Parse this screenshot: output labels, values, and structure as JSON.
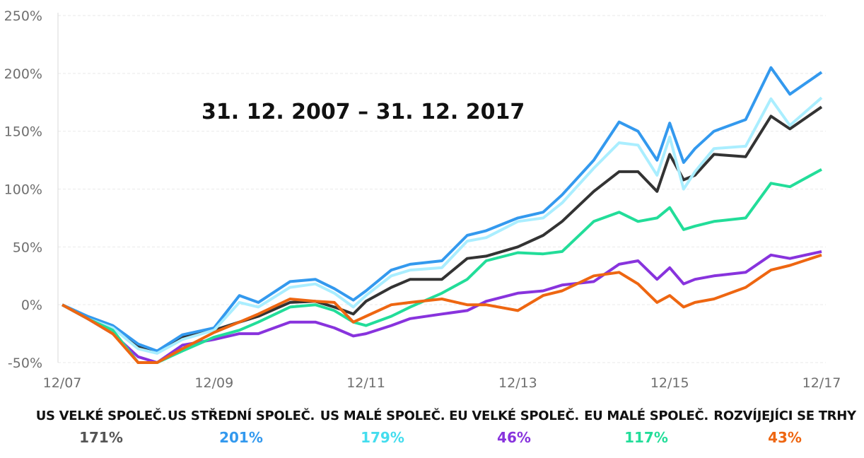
{
  "chart_data": {
    "type": "line",
    "period_label": "31. 12. 2007 – 31. 12. 2017",
    "ylim": [
      -50,
      250
    ],
    "y_ticks": [
      250,
      200,
      150,
      100,
      50,
      0,
      -50
    ],
    "y_tick_labels": [
      "250%",
      "200%",
      "150%",
      "100%",
      "50%",
      "0%",
      "-50%"
    ],
    "x_ticks": [
      2007.917,
      2009.917,
      2011.917,
      2013.917,
      2015.917,
      2017.917
    ],
    "x_tick_labels": [
      "12/07",
      "12/09",
      "12/11",
      "12/13",
      "12/15",
      "12/17"
    ],
    "xlim": [
      2007.917,
      2017.917
    ],
    "grid": true,
    "series": [
      {
        "name": "US VELKÉ SPOLEČ.",
        "total": "171%",
        "color": "#333333",
        "x": [
          2007.917,
          2008.25,
          2008.583,
          2008.917,
          2009.167,
          2009.5,
          2009.917,
          2010.25,
          2010.5,
          2010.917,
          2011.25,
          2011.5,
          2011.75,
          2011.917,
          2012.25,
          2012.5,
          2012.917,
          2013.25,
          2013.5,
          2013.917,
          2014.25,
          2014.5,
          2014.917,
          2015.25,
          2015.5,
          2015.75,
          2015.917,
          2016.1,
          2016.25,
          2016.5,
          2016.917,
          2017.25,
          2017.5,
          2017.917
        ],
        "y": [
          0,
          -12,
          -20,
          -36,
          -40,
          -28,
          -22,
          -15,
          -10,
          2,
          3,
          -2,
          -8,
          3,
          15,
          22,
          22,
          40,
          42,
          50,
          60,
          72,
          98,
          115,
          115,
          98,
          130,
          108,
          112,
          130,
          128,
          163,
          152,
          171
        ]
      },
      {
        "name": "US STŘEDNÍ SPOLEČ.",
        "total": "201%",
        "color": "#3399ee",
        "x": [
          2007.917,
          2008.25,
          2008.583,
          2008.917,
          2009.167,
          2009.5,
          2009.917,
          2010.25,
          2010.5,
          2010.917,
          2011.25,
          2011.5,
          2011.75,
          2011.917,
          2012.25,
          2012.5,
          2012.917,
          2013.25,
          2013.5,
          2013.917,
          2014.25,
          2014.5,
          2014.917,
          2015.25,
          2015.5,
          2015.75,
          2015.917,
          2016.1,
          2016.25,
          2016.5,
          2016.917,
          2017.25,
          2017.5,
          2017.917
        ],
        "y": [
          0,
          -10,
          -18,
          -34,
          -40,
          -26,
          -20,
          8,
          2,
          20,
          22,
          14,
          4,
          12,
          30,
          35,
          38,
          60,
          64,
          75,
          80,
          95,
          125,
          158,
          150,
          125,
          157,
          123,
          135,
          150,
          160,
          205,
          182,
          201
        ]
      },
      {
        "name": "US MALÉ SPOLEČ.",
        "total": "179%",
        "color": "#aaeeff",
        "x": [
          2007.917,
          2008.25,
          2008.583,
          2008.917,
          2009.167,
          2009.5,
          2009.917,
          2010.25,
          2010.5,
          2010.917,
          2011.25,
          2011.5,
          2011.75,
          2011.917,
          2012.25,
          2012.5,
          2012.917,
          2013.25,
          2013.5,
          2013.917,
          2014.25,
          2014.5,
          2014.917,
          2015.25,
          2015.5,
          2015.75,
          2015.917,
          2016.1,
          2016.25,
          2016.5,
          2016.917,
          2017.25,
          2017.5,
          2017.917
        ],
        "y": [
          0,
          -12,
          -20,
          -38,
          -42,
          -30,
          -22,
          2,
          -2,
          15,
          18,
          10,
          -2,
          8,
          25,
          30,
          32,
          55,
          58,
          72,
          75,
          88,
          118,
          140,
          138,
          112,
          145,
          100,
          115,
          135,
          137,
          178,
          155,
          179
        ]
      },
      {
        "name": "EU VELKÉ SPOLEČ.",
        "total": "46%",
        "color": "#8833dd",
        "x": [
          2007.917,
          2008.25,
          2008.583,
          2008.917,
          2009.167,
          2009.5,
          2009.917,
          2010.25,
          2010.5,
          2010.917,
          2011.25,
          2011.5,
          2011.75,
          2011.917,
          2012.25,
          2012.5,
          2012.917,
          2013.25,
          2013.5,
          2013.917,
          2014.25,
          2014.5,
          2014.917,
          2015.25,
          2015.5,
          2015.75,
          2015.917,
          2016.1,
          2016.25,
          2016.5,
          2016.917,
          2017.25,
          2017.5,
          2017.917
        ],
        "y": [
          0,
          -12,
          -25,
          -45,
          -50,
          -35,
          -30,
          -25,
          -25,
          -15,
          -15,
          -20,
          -27,
          -25,
          -18,
          -12,
          -8,
          -5,
          3,
          10,
          12,
          17,
          20,
          35,
          38,
          22,
          32,
          18,
          22,
          25,
          28,
          43,
          40,
          46
        ]
      },
      {
        "name": "EU MALÉ SPOLEČ.",
        "total": "117%",
        "color": "#22dd99",
        "x": [
          2007.917,
          2008.25,
          2008.583,
          2008.917,
          2009.167,
          2009.5,
          2009.917,
          2010.25,
          2010.5,
          2010.917,
          2011.25,
          2011.5,
          2011.75,
          2011.917,
          2012.25,
          2012.5,
          2012.917,
          2013.25,
          2013.5,
          2013.917,
          2014.25,
          2014.5,
          2014.917,
          2015.25,
          2015.5,
          2015.75,
          2015.917,
          2016.1,
          2016.25,
          2016.5,
          2016.917,
          2017.25,
          2017.5,
          2017.917
        ],
        "y": [
          0,
          -12,
          -22,
          -50,
          -52,
          -40,
          -28,
          -22,
          -15,
          -2,
          0,
          -5,
          -15,
          -18,
          -10,
          -2,
          10,
          22,
          38,
          45,
          44,
          46,
          72,
          80,
          72,
          75,
          84,
          65,
          68,
          72,
          75,
          105,
          102,
          117
        ]
      },
      {
        "name": "ROZVÍJEJÍCI SE TRHY",
        "total": "43%",
        "color": "#ee6611",
        "x": [
          2007.917,
          2008.25,
          2008.583,
          2008.917,
          2009.167,
          2009.5,
          2009.917,
          2010.25,
          2010.5,
          2010.917,
          2011.25,
          2011.5,
          2011.75,
          2011.917,
          2012.25,
          2012.5,
          2012.917,
          2013.25,
          2013.5,
          2013.917,
          2014.25,
          2014.5,
          2014.917,
          2015.25,
          2015.5,
          2015.75,
          2015.917,
          2016.1,
          2016.25,
          2016.5,
          2016.917,
          2017.25,
          2017.5,
          2017.917
        ],
        "y": [
          0,
          -12,
          -25,
          -50,
          -52,
          -38,
          -24,
          -15,
          -8,
          5,
          3,
          2,
          -15,
          -10,
          0,
          2,
          5,
          0,
          0,
          -5,
          8,
          12,
          25,
          28,
          18,
          2,
          8,
          -2,
          2,
          5,
          15,
          30,
          34,
          43
        ]
      }
    ]
  }
}
